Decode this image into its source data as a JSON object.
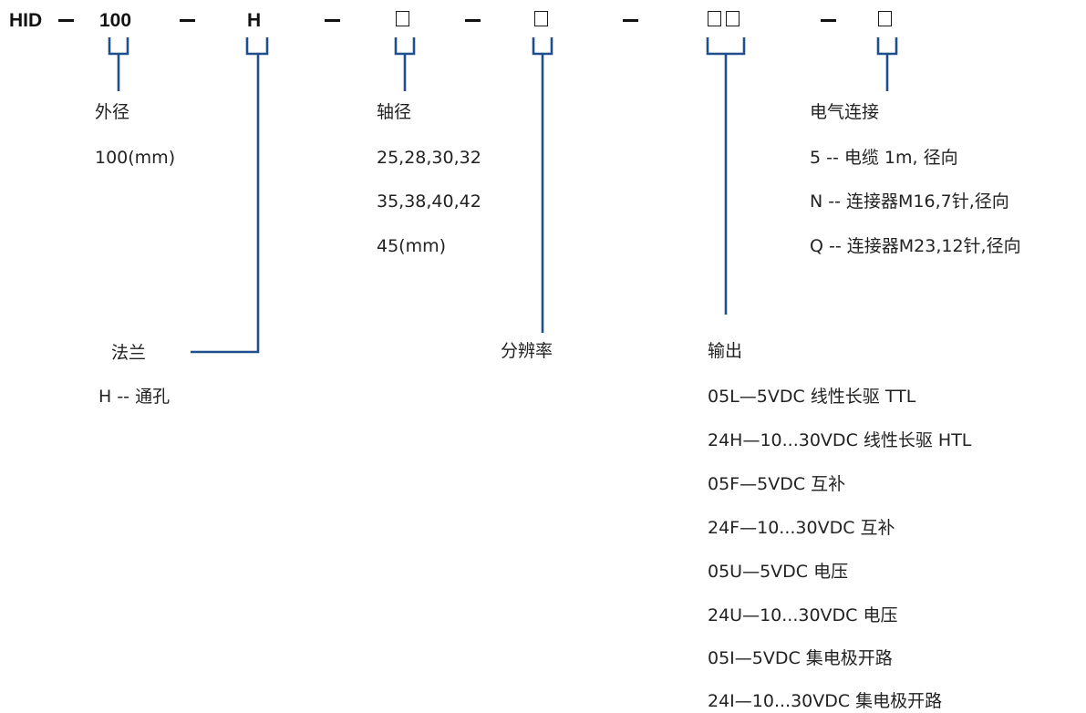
{
  "colors": {
    "connector": "#1e4f8c",
    "code_text": "#111111",
    "label_text": "#222222"
  },
  "code": {
    "prefix": "HID",
    "diameter": "100",
    "flange": "H"
  },
  "diameter": {
    "title": "外径",
    "values": [
      "100(mm)"
    ]
  },
  "flange": {
    "title": "法兰",
    "values": [
      "H -- 通孔"
    ]
  },
  "shaft": {
    "title": "轴径",
    "values": [
      "25,28,30,32",
      "35,38,40,42",
      "45(mm)"
    ]
  },
  "resolution": {
    "title": "分辨率"
  },
  "output": {
    "title": "输出",
    "values": [
      "05L—5VDC 线性长驱 TTL",
      "24H—10...30VDC 线性长驱 HTL",
      "05F—5VDC 互补",
      "24F—10...30VDC 互补",
      "05U—5VDC 电压",
      "24U—10...30VDC 电压",
      "05I—5VDC 集电极开路",
      "24I—10...30VDC 集电极开路"
    ]
  },
  "connection": {
    "title": "电气连接",
    "values": [
      "5 -- 电缆 1m, 径向",
      "N -- 连接器M16,7针,径向",
      "Q -- 连接器M23,12针,径向"
    ]
  }
}
